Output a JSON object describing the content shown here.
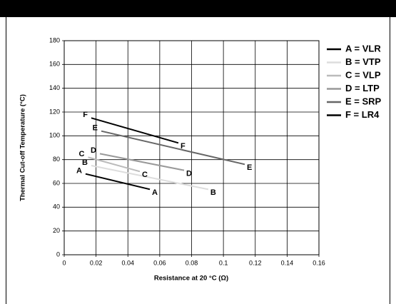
{
  "chart_data": {
    "type": "line",
    "x_label": "Resistance at 20 °C (Ω)",
    "y_label": "Thermal Cut-off Temperature (°C)",
    "xlim": [
      0,
      0.16
    ],
    "xticks": [
      0,
      0.02,
      0.04,
      0.06,
      0.08,
      0.1,
      0.12,
      0.14,
      0.16
    ],
    "ylim": [
      0,
      180
    ],
    "yticks": [
      0,
      20,
      40,
      60,
      80,
      100,
      120,
      140,
      160,
      180
    ],
    "grid": true,
    "legend": "right",
    "series": [
      {
        "name": "A = VLR",
        "label": "A",
        "color": "#000000",
        "x": [
          0.0134,
          0.0538
        ],
        "values": [
          68,
          55
        ]
      },
      {
        "name": "B = VTP",
        "label": "B",
        "color": "#dddddd",
        "x": [
          0.017,
          0.0905
        ],
        "values": [
          75,
          55
        ]
      },
      {
        "name": "C = VLP",
        "label": "C",
        "color": "#bbbbbb",
        "x": [
          0.015,
          0.0475
        ],
        "values": [
          82,
          70
        ]
      },
      {
        "name": "D = LTP",
        "label": "D",
        "color": "#999999",
        "x": [
          0.0224,
          0.0753
        ],
        "values": [
          85,
          71
        ]
      },
      {
        "name": "E = SRP",
        "label": "E",
        "color": "#666666",
        "x": [
          0.0233,
          0.1134
        ],
        "values": [
          104,
          76
        ]
      },
      {
        "name": "F = LR4",
        "label": "F",
        "color": "#000000",
        "x": [
          0.017,
          0.0717
        ],
        "values": [
          115,
          94
        ]
      }
    ]
  }
}
